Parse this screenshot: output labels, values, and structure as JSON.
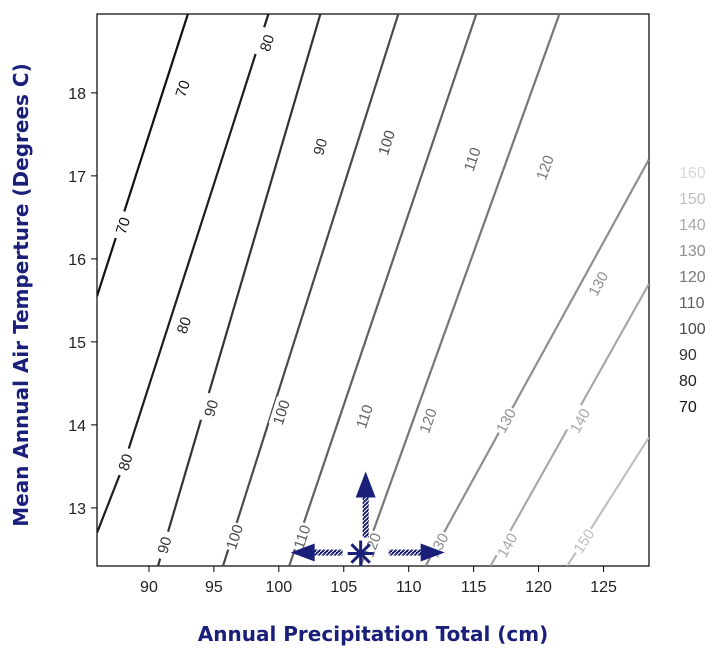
{
  "chart_data": {
    "type": "contour",
    "xlabel": "Annual Precipitation Total (cm)",
    "ylabel": "Mean Annual Air Temperture (Degrees C)",
    "xlim": [
      86,
      128.5
    ],
    "ylim": [
      12.3,
      18.95
    ],
    "xticks": [
      90,
      95,
      100,
      105,
      110,
      115,
      120,
      125
    ],
    "yticks": [
      13,
      14,
      15,
      16,
      17,
      18
    ],
    "grid": false,
    "legend": {
      "placement": "right",
      "entries": [
        "160",
        "150",
        "140",
        "130",
        "120",
        "110",
        "100",
        "90",
        "80",
        "70"
      ]
    },
    "contours": [
      {
        "level": 70,
        "color": "#111111",
        "points": [
          [
            86,
            15.55
          ],
          [
            93,
            18.95
          ]
        ],
        "labels": [
          [
            88,
            16.4
          ],
          [
            92.6,
            18.05
          ]
        ]
      },
      {
        "level": 80,
        "color": "#1e1e1e",
        "points": [
          [
            86,
            12.7
          ],
          [
            88,
            13.5
          ],
          [
            95,
            16.9
          ],
          [
            99.2,
            18.95
          ]
        ],
        "labels": [
          [
            88.2,
            13.55
          ],
          [
            92.7,
            15.2
          ],
          [
            99.1,
            18.6
          ]
        ]
      },
      {
        "level": 90,
        "color": "#333333",
        "points": [
          [
            90.7,
            12.3
          ],
          [
            103.2,
            18.95
          ]
        ],
        "labels": [
          [
            91.2,
            12.55
          ],
          [
            94.8,
            14.2
          ],
          [
            103.2,
            17.35
          ]
        ]
      },
      {
        "level": 100,
        "color": "#4a4a4a",
        "points": [
          [
            95.7,
            12.3
          ],
          [
            109.2,
            18.95
          ]
        ],
        "labels": [
          [
            96.6,
            12.65
          ],
          [
            100.2,
            14.15
          ],
          [
            108.3,
            17.4
          ]
        ]
      },
      {
        "level": 110,
        "color": "#616161",
        "points": [
          [
            100.8,
            12.3
          ],
          [
            115.2,
            18.95
          ]
        ],
        "labels": [
          [
            101.8,
            12.65
          ],
          [
            106.6,
            14.1
          ],
          [
            114.9,
            17.2
          ]
        ]
      },
      {
        "level": 120,
        "color": "#777777",
        "points": [
          [
            106.3,
            12.3
          ],
          [
            121.6,
            18.95
          ]
        ],
        "labels": [
          [
            107.2,
            12.55
          ],
          [
            111.5,
            14.05
          ],
          [
            120.5,
            17.1
          ]
        ]
      },
      {
        "level": 130,
        "color": "#8f8f8f",
        "points": [
          [
            111.3,
            12.3
          ],
          [
            128.5,
            17.2
          ]
        ],
        "labels": [
          [
            112.3,
            12.55
          ],
          [
            117.5,
            14.05
          ],
          [
            124.6,
            15.7
          ]
        ]
      },
      {
        "level": 140,
        "color": "#a8a8a8",
        "points": [
          [
            116.3,
            12.3
          ],
          [
            128.5,
            15.7
          ]
        ],
        "labels": [
          [
            117.6,
            12.55
          ],
          [
            123.2,
            14.05
          ]
        ]
      },
      {
        "level": 150,
        "color": "#c0c0c0",
        "points": [
          [
            122.2,
            12.3
          ],
          [
            128.5,
            13.85
          ]
        ],
        "labels": [
          [
            123.5,
            12.6
          ]
        ]
      }
    ],
    "annotation": {
      "marker": "asterisk",
      "position": [
        106.3,
        12.45
      ],
      "arrows": [
        "up",
        "left",
        "right"
      ],
      "color": "#1a1f7a"
    }
  }
}
